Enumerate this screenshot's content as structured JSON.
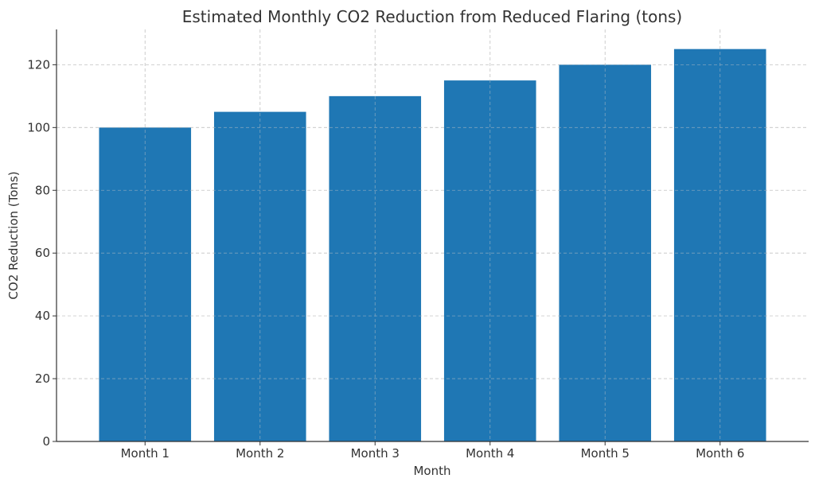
{
  "chart_data": {
    "type": "bar",
    "title": "Estimated Monthly CO2 Reduction from Reduced Flaring (tons)",
    "xlabel": "Month",
    "ylabel": "CO2 Reduction (Tons)",
    "categories": [
      "Month 1",
      "Month 2",
      "Month 3",
      "Month 4",
      "Month 5",
      "Month 6"
    ],
    "values": [
      100,
      105,
      110,
      115,
      120,
      125
    ],
    "ylim": [
      0,
      131.25
    ],
    "yticks": [
      0,
      20,
      40,
      60,
      80,
      100,
      120
    ],
    "grid": true,
    "bar_color": "#1f77b4"
  }
}
